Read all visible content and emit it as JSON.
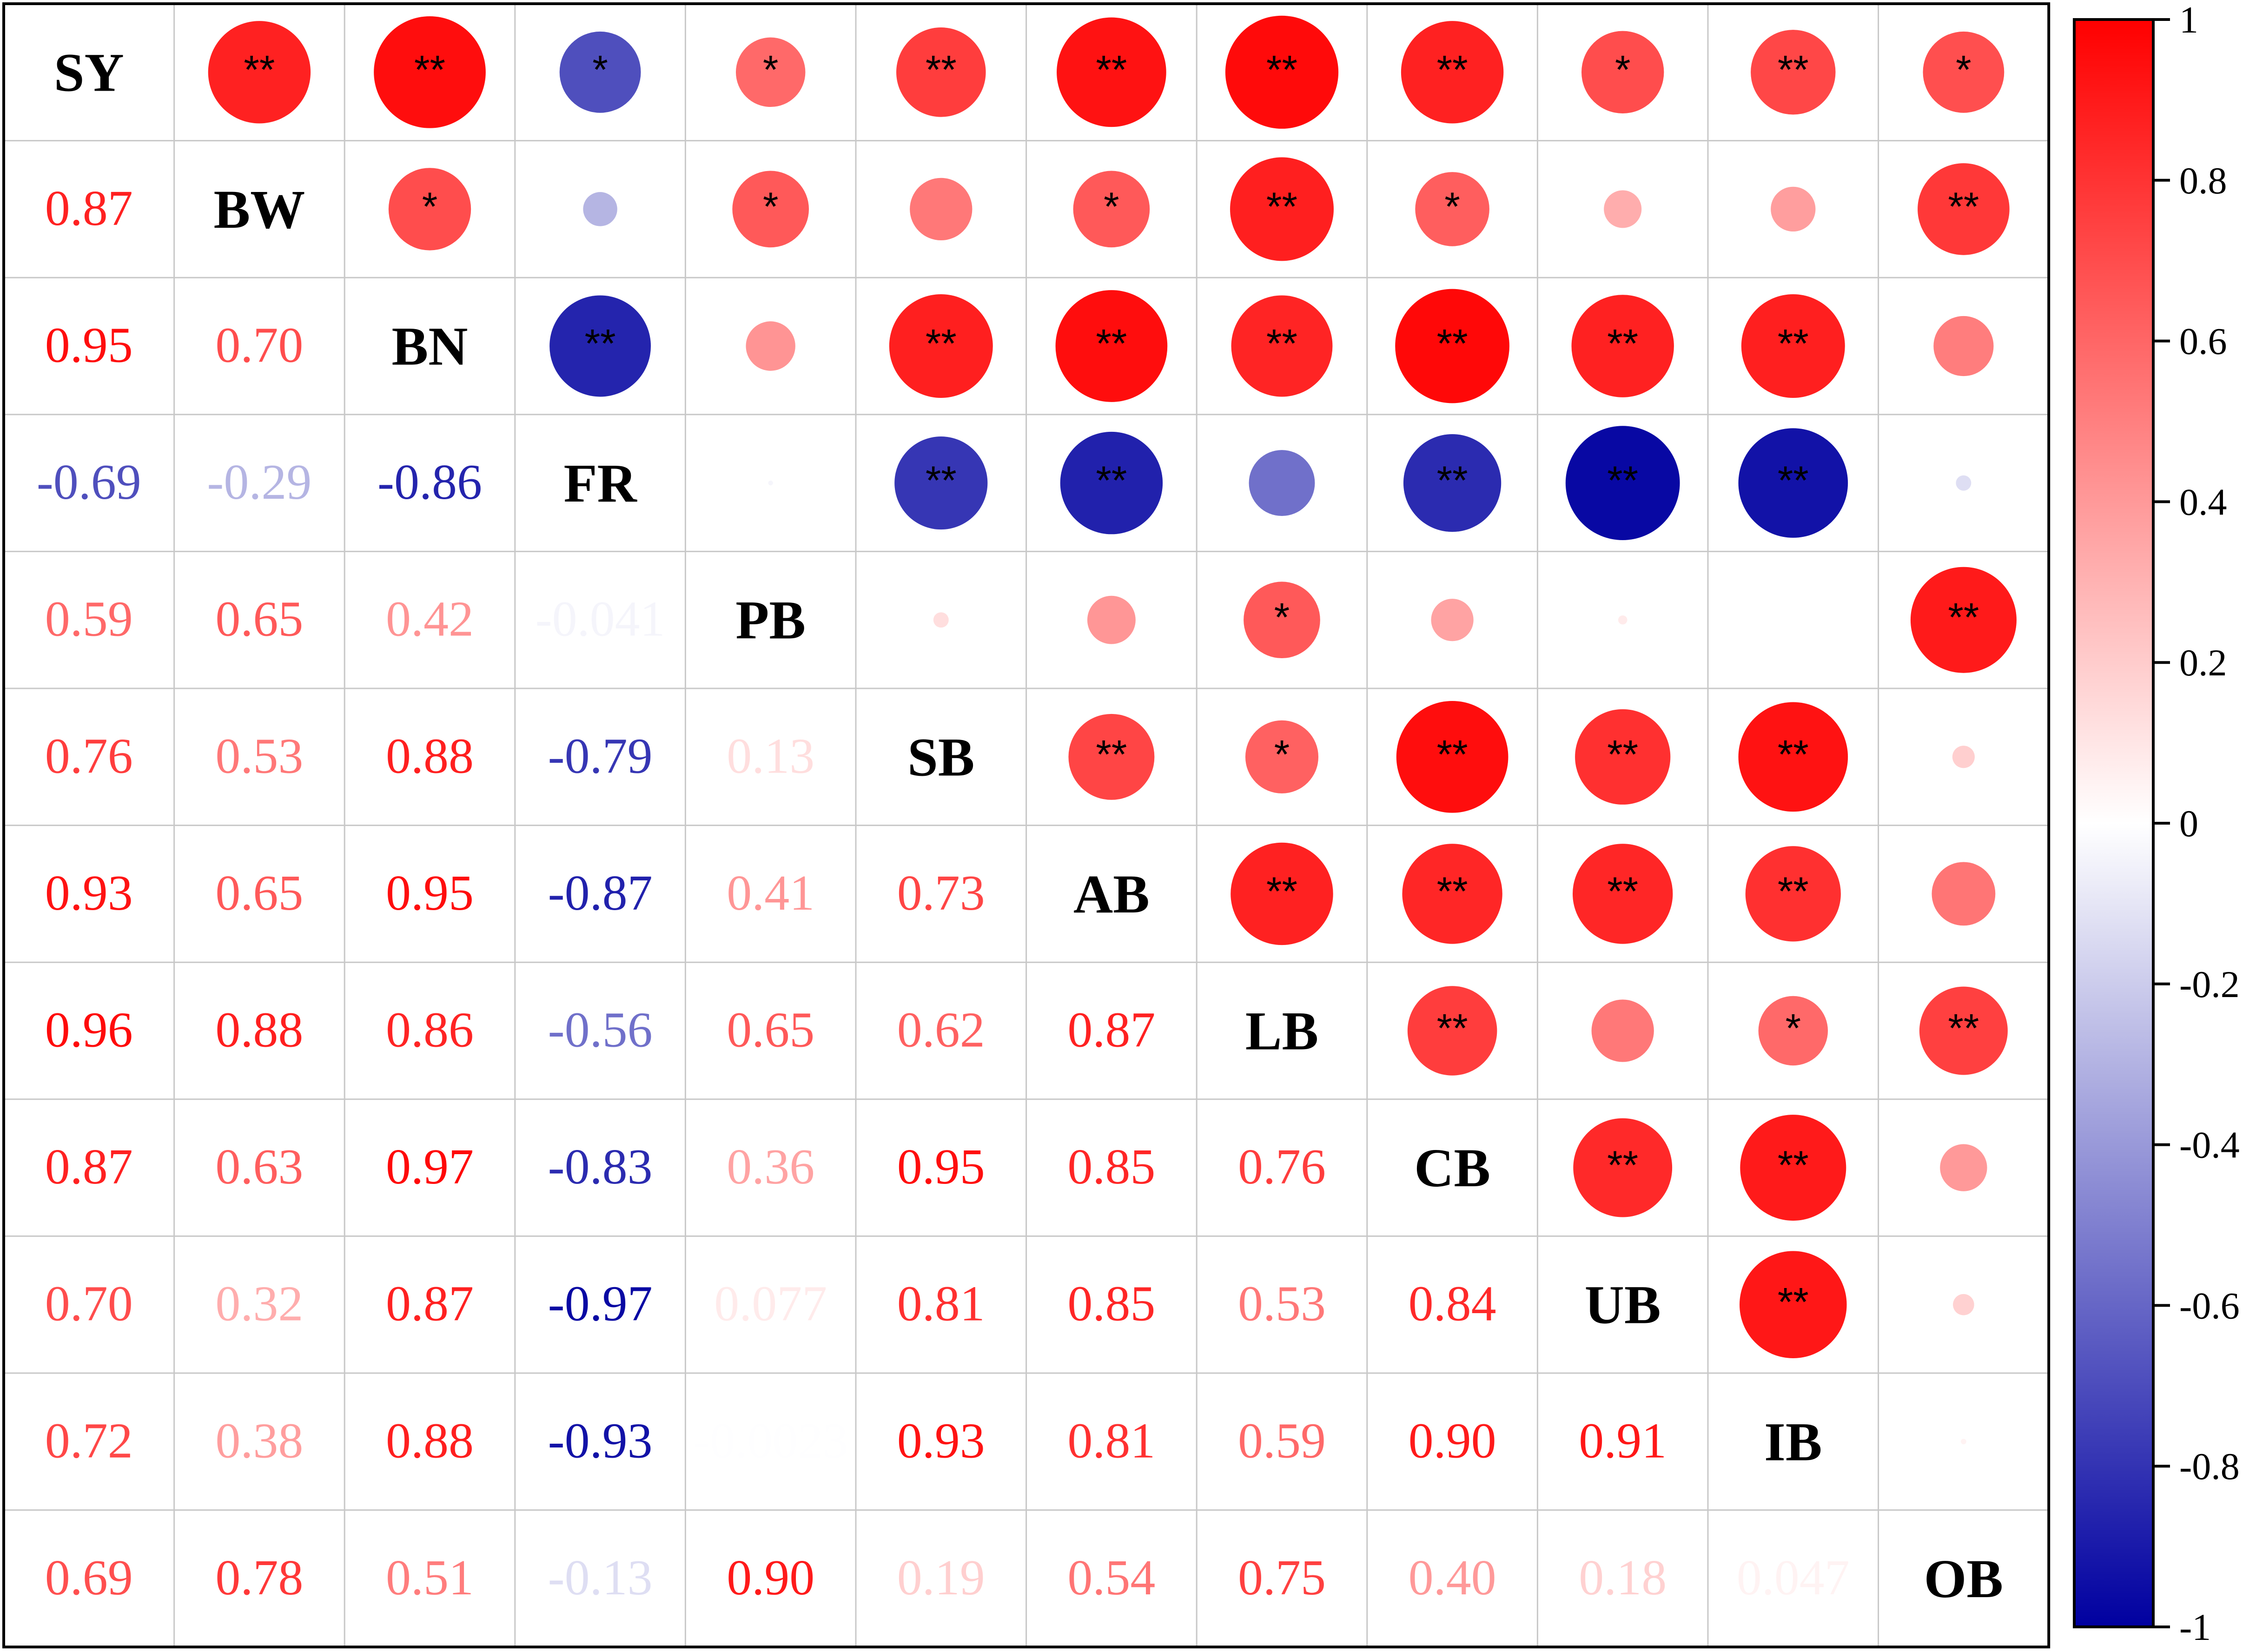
{
  "chart_data": {
    "type": "heatmap",
    "variables": [
      "SY",
      "BW",
      "BN",
      "FR",
      "PB",
      "SB",
      "AB",
      "LB",
      "CB",
      "UB",
      "IB",
      "OB"
    ],
    "lower_triangle_labels": [
      [],
      [
        "0.87"
      ],
      [
        "0.95",
        "0.70"
      ],
      [
        "-0.69",
        "-0.29",
        "-0.86"
      ],
      [
        "0.59",
        "0.65",
        "0.42",
        "-0.041"
      ],
      [
        "0.76",
        "0.53",
        "0.88",
        "-0.79",
        "0.13"
      ],
      [
        "0.93",
        "0.65",
        "0.95",
        "-0.87",
        "0.41",
        "0.73"
      ],
      [
        "0.96",
        "0.88",
        "0.86",
        "-0.56",
        "0.65",
        "0.62",
        "0.87"
      ],
      [
        "0.87",
        "0.63",
        "0.97",
        "-0.83",
        "0.36",
        "0.95",
        "0.85",
        "0.76"
      ],
      [
        "0.70",
        "0.32",
        "0.87",
        "-0.97",
        "0.077",
        "0.81",
        "0.85",
        "0.53",
        "0.84"
      ],
      [
        "0.72",
        "0.38",
        "0.88",
        "-0.93",
        "-0.0023",
        "0.93",
        "0.81",
        "0.59",
        "0.90",
        "0.91"
      ],
      [
        "0.69",
        "0.78",
        "0.51",
        "-0.13",
        "0.90",
        "0.19",
        "0.54",
        "0.75",
        "0.40",
        "0.18",
        "0.047"
      ]
    ],
    "significance": [
      [
        null,
        "**",
        "**",
        "*",
        "*",
        "**",
        "**",
        "**",
        "**",
        "*",
        "**",
        "*"
      ],
      [
        null,
        null,
        "*",
        "",
        "*",
        "",
        "*",
        "**",
        "*",
        "",
        "",
        "**"
      ],
      [
        null,
        null,
        null,
        "**",
        "",
        "**",
        "**",
        "**",
        "**",
        "**",
        "**",
        ""
      ],
      [
        null,
        null,
        null,
        null,
        "",
        "**",
        "**",
        "",
        "**",
        "**",
        "**",
        ""
      ],
      [
        null,
        null,
        null,
        null,
        null,
        "",
        "",
        "*",
        "",
        "",
        "",
        "**"
      ],
      [
        null,
        null,
        null,
        null,
        null,
        null,
        "**",
        "*",
        "**",
        "**",
        "**",
        ""
      ],
      [
        null,
        null,
        null,
        null,
        null,
        null,
        null,
        "**",
        "**",
        "**",
        "**",
        ""
      ],
      [
        null,
        null,
        null,
        null,
        null,
        null,
        null,
        null,
        "**",
        "",
        "*",
        "**"
      ],
      [
        null,
        null,
        null,
        null,
        null,
        null,
        null,
        null,
        null,
        "**",
        "**",
        ""
      ],
      [
        null,
        null,
        null,
        null,
        null,
        null,
        null,
        null,
        null,
        null,
        "**",
        ""
      ],
      [
        null,
        null,
        null,
        null,
        null,
        null,
        null,
        null,
        null,
        null,
        null,
        ""
      ],
      [
        null,
        null,
        null,
        null,
        null,
        null,
        null,
        null,
        null,
        null,
        null,
        null
      ]
    ],
    "colorbar": {
      "range": [
        -1,
        1
      ],
      "ticks": [
        "1",
        "0.8",
        "0.6",
        "0.4",
        "0.2",
        "0",
        "-0.2",
        "-0.4",
        "-0.6",
        "-0.8",
        "-1"
      ],
      "colors": {
        "positive": "#ff0000",
        "zero": "#ffffff",
        "negative": "#0000a0"
      }
    },
    "grid": true,
    "legend_placement": "right"
  }
}
